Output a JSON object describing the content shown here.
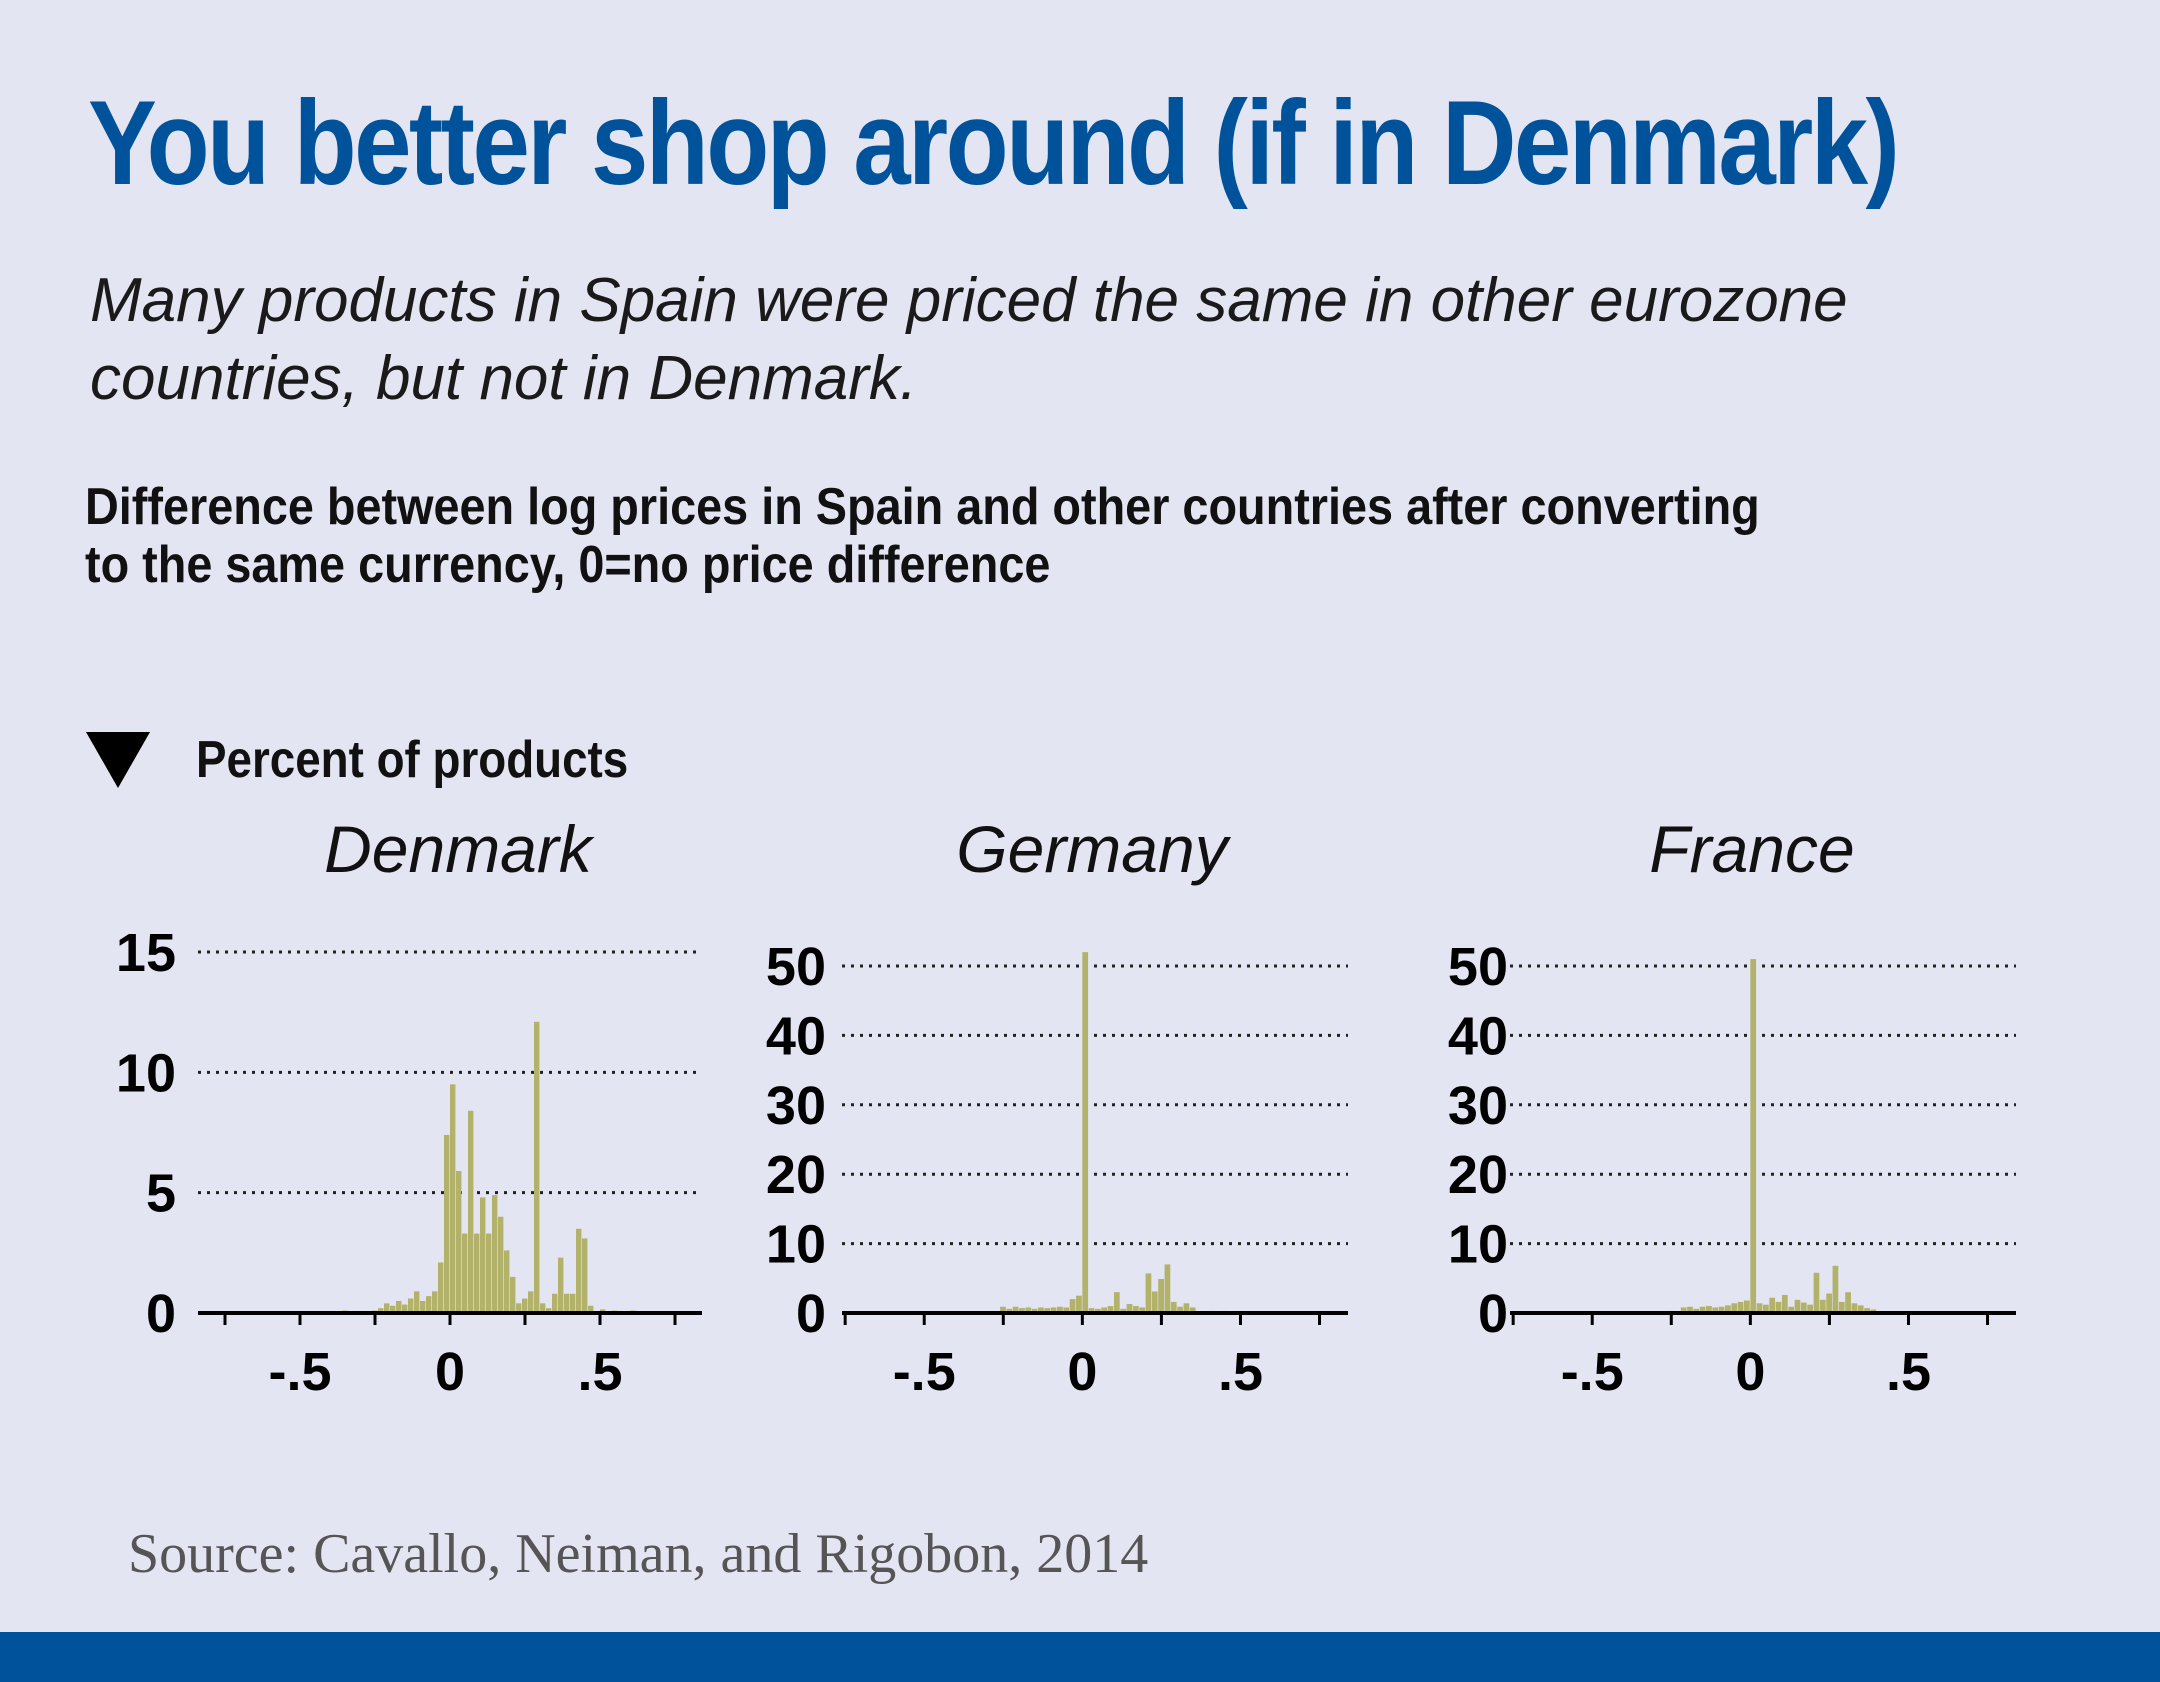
{
  "title": "You better shop around (if in Denmark)",
  "subtitle": "Many products in Spain were priced the same in other eurozone countries, but not in Denmark.",
  "description": "Difference between log prices in Spain and other countries after converting to the same currency, 0=no price difference",
  "y_axis_label": "Percent of products",
  "source": "Source: Cavallo, Neiman, and Rigobon, 2014",
  "colors": {
    "title": "#00539b",
    "bar": "#b2b26a",
    "background": "#e4e5f2",
    "footer": "#00539b"
  },
  "chart_data": [
    {
      "type": "bar",
      "title": "Denmark",
      "xlabel": "",
      "ylabel": "Percent of products",
      "xlim": [
        -0.84,
        0.84
      ],
      "ylim": [
        0,
        15
      ],
      "yticks": [
        0,
        5,
        10,
        15
      ],
      "ytick_labels": [
        "0",
        "5",
        "10",
        "15"
      ],
      "xticks": [
        -0.5,
        0,
        0.5
      ],
      "xtick_labels": [
        "-.5",
        "0",
        ".5"
      ],
      "grid": true,
      "bin_width": 0.02,
      "x": [
        -0.37,
        -0.35,
        -0.29,
        -0.25,
        -0.23,
        -0.21,
        -0.19,
        -0.17,
        -0.15,
        -0.13,
        -0.11,
        -0.09,
        -0.07,
        -0.05,
        -0.03,
        -0.01,
        0.01,
        0.03,
        0.05,
        0.07,
        0.09,
        0.11,
        0.13,
        0.15,
        0.17,
        0.19,
        0.21,
        0.23,
        0.25,
        0.27,
        0.29,
        0.31,
        0.33,
        0.35,
        0.37,
        0.39,
        0.41,
        0.43,
        0.45,
        0.47,
        0.51,
        0.55,
        0.61,
        0.65,
        0.71
      ],
      "values": [
        0.05,
        0.1,
        0.05,
        0.1,
        0.2,
        0.4,
        0.3,
        0.5,
        0.35,
        0.6,
        0.9,
        0.5,
        0.7,
        0.9,
        2.1,
        7.4,
        9.5,
        5.9,
        3.3,
        8.4,
        3.3,
        4.8,
        3.3,
        4.9,
        4.0,
        2.6,
        1.5,
        0.4,
        0.6,
        0.9,
        12.1,
        0.4,
        0.2,
        0.8,
        2.3,
        0.8,
        0.8,
        3.5,
        3.1,
        0.3,
        0.15,
        0.1,
        0.1,
        0.05,
        0.05
      ]
    },
    {
      "type": "bar",
      "title": "Germany",
      "xlabel": "",
      "ylabel": "Percent of products",
      "xlim": [
        -0.76,
        0.84
      ],
      "ylim": [
        0,
        50
      ],
      "yticks": [
        0,
        10,
        20,
        30,
        40,
        50
      ],
      "ytick_labels": [
        "0",
        "10",
        "20",
        "30",
        "40",
        "50"
      ],
      "xticks": [
        -0.5,
        0,
        0.5
      ],
      "xtick_labels": [
        "-.5",
        "0",
        ".5"
      ],
      "grid": true,
      "bin_width": 0.02,
      "x": [
        -0.35,
        -0.25,
        -0.23,
        -0.21,
        -0.19,
        -0.17,
        -0.15,
        -0.13,
        -0.11,
        -0.09,
        -0.07,
        -0.05,
        -0.03,
        -0.01,
        0.01,
        0.03,
        0.05,
        0.07,
        0.09,
        0.11,
        0.13,
        0.15,
        0.17,
        0.19,
        0.21,
        0.23,
        0.25,
        0.27,
        0.29,
        0.31,
        0.33,
        0.35,
        0.41,
        0.45,
        0.51
      ],
      "values": [
        0.1,
        0.9,
        0.6,
        0.9,
        0.7,
        0.8,
        0.6,
        0.8,
        0.7,
        0.8,
        0.9,
        0.8,
        2.0,
        2.5,
        52.0,
        0.7,
        0.6,
        0.8,
        1.0,
        3.0,
        0.6,
        1.3,
        1.0,
        0.8,
        5.7,
        3.1,
        4.9,
        7.0,
        1.6,
        0.9,
        1.4,
        0.8,
        0.3,
        0.3,
        0.1
      ]
    },
    {
      "type": "bar",
      "title": "France",
      "xlabel": "",
      "ylabel": "Percent of products",
      "xlim": [
        -0.76,
        0.84
      ],
      "ylim": [
        0,
        50
      ],
      "yticks": [
        0,
        10,
        20,
        30,
        40,
        50
      ],
      "ytick_labels": [
        "0",
        "10",
        "20",
        "30",
        "40",
        "50"
      ],
      "xticks": [
        -0.5,
        0,
        0.5
      ],
      "xtick_labels": [
        "-.5",
        "0",
        ".5"
      ],
      "grid": true,
      "bin_width": 0.02,
      "x": [
        -0.25,
        -0.21,
        -0.19,
        -0.17,
        -0.15,
        -0.13,
        -0.11,
        -0.09,
        -0.07,
        -0.05,
        -0.03,
        -0.01,
        0.01,
        0.03,
        0.05,
        0.07,
        0.09,
        0.11,
        0.13,
        0.15,
        0.17,
        0.19,
        0.21,
        0.23,
        0.25,
        0.27,
        0.29,
        0.31,
        0.33,
        0.35,
        0.37,
        0.39
      ],
      "values": [
        0.3,
        0.8,
        0.9,
        0.6,
        0.9,
        1.0,
        0.8,
        0.9,
        1.1,
        1.4,
        1.6,
        1.8,
        51.0,
        1.4,
        1.2,
        2.2,
        1.6,
        2.6,
        0.9,
        1.9,
        1.5,
        1.2,
        5.8,
        1.9,
        2.8,
        6.8,
        1.6,
        3.0,
        1.4,
        1.1,
        0.7,
        0.5
      ]
    }
  ]
}
